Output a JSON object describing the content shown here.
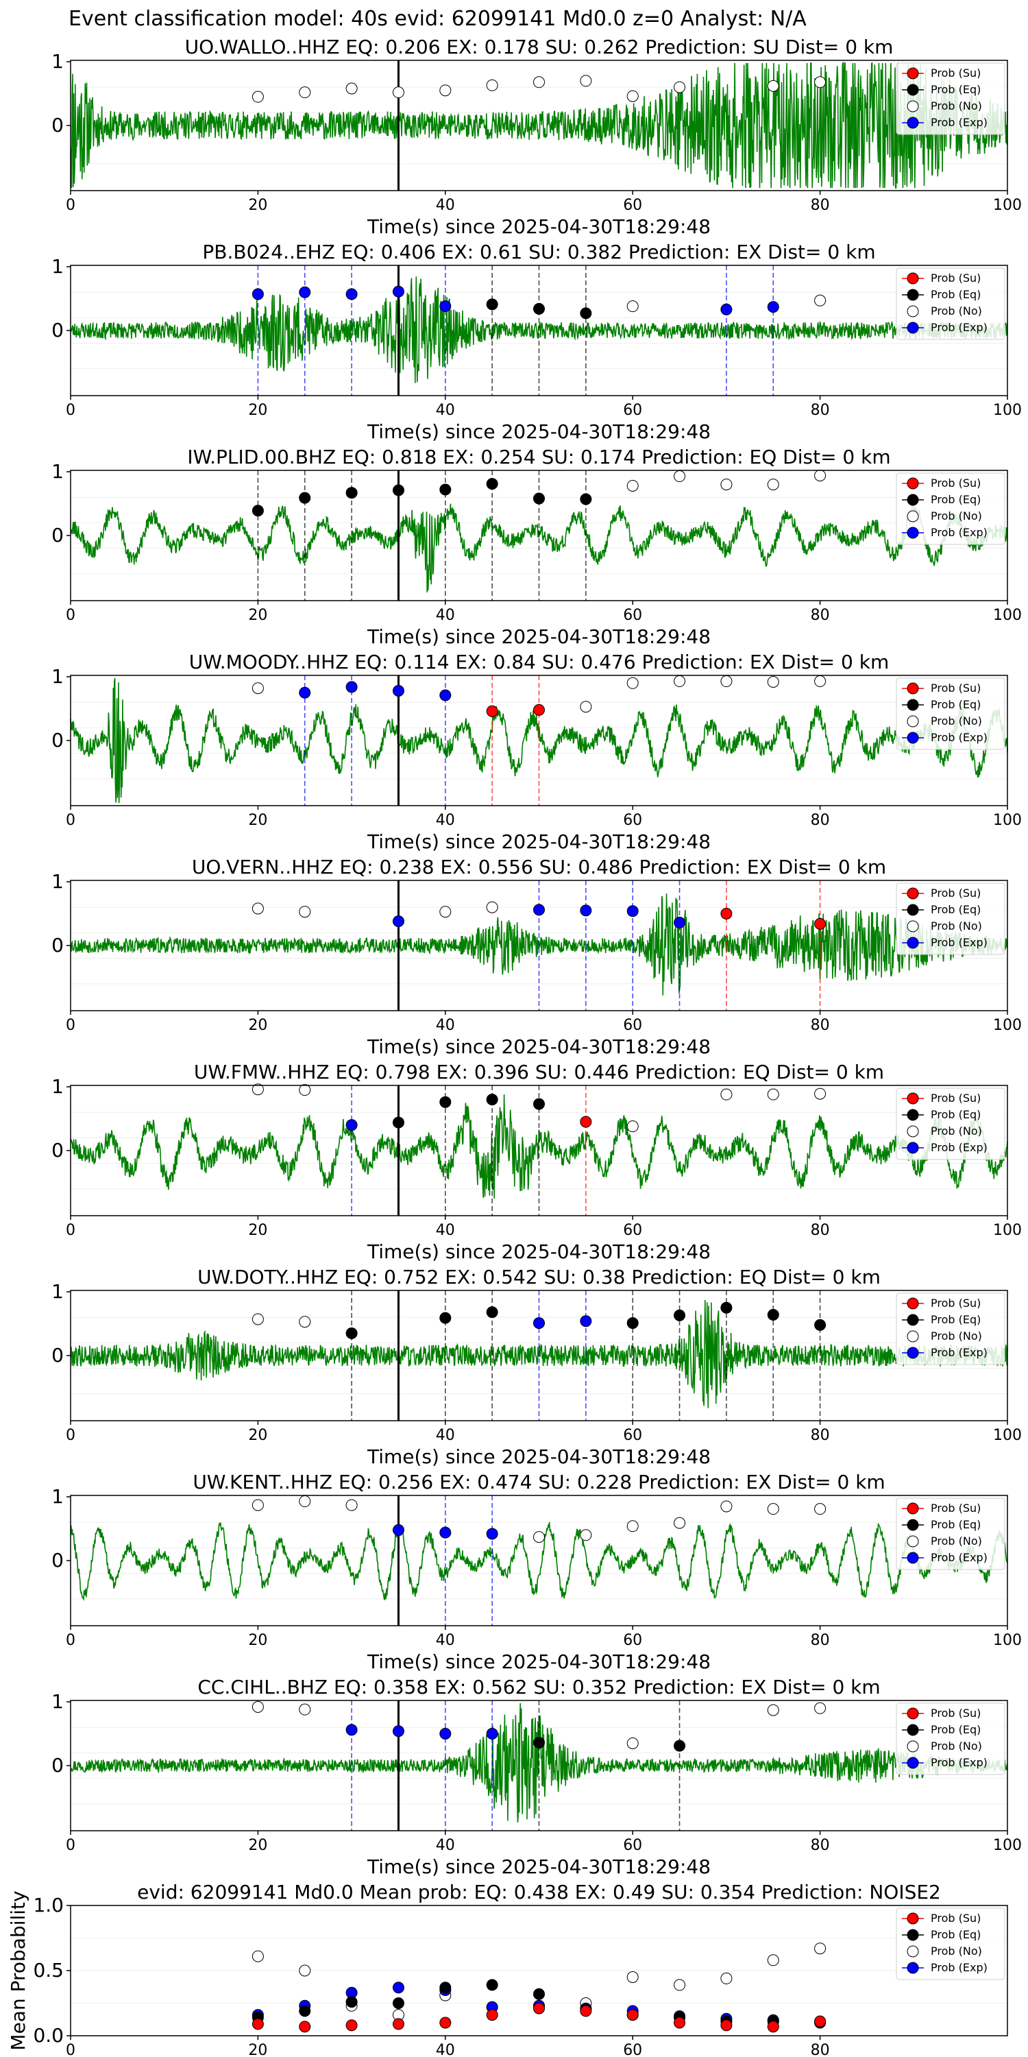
{
  "page": {
    "title": "Event classification model: 40s evid: 62099141 Md0.0 z=0 Analyst: N/A"
  },
  "legend_labels": [
    "Prob (Su)",
    "Prob (Eq)",
    "Prob (No)",
    "Prob (Exp)"
  ],
  "colors": {
    "waveform": "#008000",
    "su": "#ff0000",
    "eq": "#000000",
    "no": "#ffffff",
    "exp": "#0000ff",
    "origin_line": "#000000"
  },
  "chart_data": [
    {
      "type": "line",
      "title": "UO.WALLO..HHZ   EQ: 0.206  EX: 0.178  SU: 0.262   Prediction: SU    Dist= 0 km",
      "xlabel": "Time(s) since 2025-04-30T18:29:48",
      "xlim": [
        0,
        100
      ],
      "ylim": [
        -1,
        1
      ],
      "xticks": [
        0,
        20,
        40,
        60,
        80,
        100
      ],
      "yticks": [
        0,
        1
      ],
      "origin_time": 35,
      "waveform": {
        "seed": 11,
        "amp": 0.22,
        "style": "noise",
        "bursts": [
          [
            0,
            3,
            1.6
          ],
          [
            73,
            15,
            1.4
          ],
          [
            88,
            12,
            1.3
          ]
        ]
      },
      "points": [
        {
          "t": 20,
          "class": "no",
          "p": 0.45
        },
        {
          "t": 25,
          "class": "no",
          "p": 0.52
        },
        {
          "t": 30,
          "class": "no",
          "p": 0.58
        },
        {
          "t": 35,
          "class": "no",
          "p": 0.52
        },
        {
          "t": 40,
          "class": "no",
          "p": 0.55
        },
        {
          "t": 45,
          "class": "no",
          "p": 0.63
        },
        {
          "t": 50,
          "class": "no",
          "p": 0.68
        },
        {
          "t": 55,
          "class": "no",
          "p": 0.7
        },
        {
          "t": 60,
          "class": "no",
          "p": 0.46
        },
        {
          "t": 65,
          "class": "no",
          "p": 0.6
        },
        {
          "t": 75,
          "class": "no",
          "p": 0.62
        },
        {
          "t": 80,
          "class": "no",
          "p": 0.68
        }
      ]
    },
    {
      "type": "line",
      "title": "PB.B024..EHZ   EQ: 0.406  EX: 0.61  SU: 0.382   Prediction: EX    Dist= 0 km",
      "xlabel": "Time(s) since 2025-04-30T18:29:48",
      "xlim": [
        0,
        100
      ],
      "ylim": [
        -1,
        1
      ],
      "xticks": [
        0,
        20,
        40,
        60,
        80,
        100
      ],
      "yticks": [
        0,
        1
      ],
      "origin_time": 35,
      "waveform": {
        "seed": 23,
        "amp": 0.13,
        "style": "noise",
        "bursts": [
          [
            22,
            6,
            0.9
          ],
          [
            37,
            6,
            1.2
          ]
        ]
      },
      "points": [
        {
          "t": 20,
          "class": "exp",
          "p": 0.57
        },
        {
          "t": 25,
          "class": "exp",
          "p": 0.6
        },
        {
          "t": 30,
          "class": "exp",
          "p": 0.57
        },
        {
          "t": 35,
          "class": "exp",
          "p": 0.61
        },
        {
          "t": 40,
          "class": "exp",
          "p": 0.38
        },
        {
          "t": 45,
          "class": "eq",
          "p": 0.41
        },
        {
          "t": 50,
          "class": "eq",
          "p": 0.34
        },
        {
          "t": 55,
          "class": "eq",
          "p": 0.27
        },
        {
          "t": 60,
          "class": "no",
          "p": 0.38
        },
        {
          "t": 70,
          "class": "exp",
          "p": 0.33
        },
        {
          "t": 75,
          "class": "exp",
          "p": 0.37
        },
        {
          "t": 80,
          "class": "no",
          "p": 0.47
        }
      ]
    },
    {
      "type": "line",
      "title": "IW.PLID.00.BHZ   EQ: 0.818  EX: 0.254  SU: 0.174   Prediction: EQ    Dist= 0 km",
      "xlabel": "Time(s) since 2025-04-30T18:29:48",
      "xlim": [
        0,
        100
      ],
      "ylim": [
        -1,
        1
      ],
      "xticks": [
        0,
        20,
        40,
        60,
        80,
        100
      ],
      "yticks": [
        0,
        1
      ],
      "origin_time": 35,
      "waveform": {
        "seed": 37,
        "amp": 0.32,
        "style": "wave",
        "period": 4.5,
        "noise": 0.12,
        "bursts": [
          [
            38,
            2,
            0.8
          ]
        ]
      },
      "points": [
        {
          "t": 20,
          "class": "eq",
          "p": 0.39
        },
        {
          "t": 25,
          "class": "eq",
          "p": 0.59
        },
        {
          "t": 30,
          "class": "eq",
          "p": 0.67
        },
        {
          "t": 35,
          "class": "eq",
          "p": 0.71
        },
        {
          "t": 40,
          "class": "eq",
          "p": 0.72
        },
        {
          "t": 45,
          "class": "eq",
          "p": 0.81
        },
        {
          "t": 50,
          "class": "eq",
          "p": 0.58
        },
        {
          "t": 55,
          "class": "eq",
          "p": 0.57
        },
        {
          "t": 60,
          "class": "no",
          "p": 0.78
        },
        {
          "t": 65,
          "class": "no",
          "p": 0.93
        },
        {
          "t": 70,
          "class": "no",
          "p": 0.8
        },
        {
          "t": 75,
          "class": "no",
          "p": 0.8
        },
        {
          "t": 80,
          "class": "no",
          "p": 0.94
        }
      ]
    },
    {
      "type": "line",
      "title": "UW.MOODY..HHZ   EQ: 0.114  EX: 0.84  SU: 0.476   Prediction: EX    Dist= 0 km",
      "xlabel": "Time(s) since 2025-04-30T18:29:48",
      "xlim": [
        0,
        100
      ],
      "ylim": [
        -1,
        1
      ],
      "xticks": [
        0,
        20,
        40,
        60,
        80,
        100
      ],
      "yticks": [
        0,
        1
      ],
      "origin_time": 35,
      "waveform": {
        "seed": 41,
        "amp": 0.38,
        "style": "wave",
        "period": 3.8,
        "noise": 0.14,
        "bursts": [
          [
            5,
            1.2,
            1.2
          ]
        ]
      },
      "points": [
        {
          "t": 20,
          "class": "no",
          "p": 0.82
        },
        {
          "t": 25,
          "class": "exp",
          "p": 0.75
        },
        {
          "t": 30,
          "class": "exp",
          "p": 0.84
        },
        {
          "t": 35,
          "class": "exp",
          "p": 0.78
        },
        {
          "t": 40,
          "class": "exp",
          "p": 0.71
        },
        {
          "t": 45,
          "class": "su",
          "p": 0.46
        },
        {
          "t": 50,
          "class": "su",
          "p": 0.48
        },
        {
          "t": 55,
          "class": "no",
          "p": 0.53
        },
        {
          "t": 60,
          "class": "no",
          "p": 0.9
        },
        {
          "t": 65,
          "class": "no",
          "p": 0.93
        },
        {
          "t": 70,
          "class": "no",
          "p": 0.93
        },
        {
          "t": 75,
          "class": "no",
          "p": 0.92
        },
        {
          "t": 80,
          "class": "no",
          "p": 0.93
        }
      ]
    },
    {
      "type": "line",
      "title": "UO.VERN..HHZ   EQ: 0.238  EX: 0.556  SU: 0.486   Prediction: EX    Dist= 0 km",
      "xlabel": "Time(s) since 2025-04-30T18:29:48",
      "xlim": [
        0,
        100
      ],
      "ylim": [
        -1,
        1
      ],
      "xticks": [
        0,
        20,
        40,
        60,
        80,
        100
      ],
      "yticks": [
        0,
        1
      ],
      "origin_time": 35,
      "waveform": {
        "seed": 53,
        "amp": 0.12,
        "style": "noise",
        "bursts": [
          [
            46,
            4,
            0.6
          ],
          [
            64,
            3,
            1.3
          ],
          [
            83,
            13,
            0.8
          ]
        ]
      },
      "points": [
        {
          "t": 20,
          "class": "no",
          "p": 0.58
        },
        {
          "t": 25,
          "class": "no",
          "p": 0.53
        },
        {
          "t": 35,
          "class": "exp",
          "p": 0.38
        },
        {
          "t": 40,
          "class": "no",
          "p": 0.53
        },
        {
          "t": 45,
          "class": "no",
          "p": 0.6
        },
        {
          "t": 50,
          "class": "exp",
          "p": 0.56
        },
        {
          "t": 55,
          "class": "exp",
          "p": 0.55
        },
        {
          "t": 60,
          "class": "exp",
          "p": 0.54
        },
        {
          "t": 65,
          "class": "exp",
          "p": 0.36
        },
        {
          "t": 70,
          "class": "su",
          "p": 0.5
        },
        {
          "t": 80,
          "class": "su",
          "p": 0.34
        }
      ]
    },
    {
      "type": "line",
      "title": "UW.FMW..HHZ   EQ: 0.798  EX: 0.396  SU: 0.446   Prediction: EQ    Dist= 0 km",
      "xlabel": "Time(s) since 2025-04-30T18:29:48",
      "xlim": [
        0,
        100
      ],
      "ylim": [
        -1,
        1
      ],
      "xticks": [
        0,
        20,
        40,
        60,
        80,
        100
      ],
      "yticks": [
        0,
        1
      ],
      "origin_time": 35,
      "waveform": {
        "seed": 67,
        "amp": 0.4,
        "style": "wave",
        "period": 4.2,
        "noise": 0.15,
        "bursts": [
          [
            46,
            5,
            0.6
          ]
        ]
      },
      "points": [
        {
          "t": 20,
          "class": "no",
          "p": 0.96
        },
        {
          "t": 25,
          "class": "no",
          "p": 0.95
        },
        {
          "t": 30,
          "class": "exp",
          "p": 0.4
        },
        {
          "t": 35,
          "class": "eq",
          "p": 0.44
        },
        {
          "t": 40,
          "class": "eq",
          "p": 0.76
        },
        {
          "t": 45,
          "class": "eq",
          "p": 0.8
        },
        {
          "t": 50,
          "class": "eq",
          "p": 0.73
        },
        {
          "t": 55,
          "class": "su",
          "p": 0.45
        },
        {
          "t": 60,
          "class": "no",
          "p": 0.38
        },
        {
          "t": 70,
          "class": "no",
          "p": 0.88
        },
        {
          "t": 75,
          "class": "no",
          "p": 0.88
        },
        {
          "t": 80,
          "class": "no",
          "p": 0.89
        }
      ]
    },
    {
      "type": "line",
      "title": "UW.DOTY..HHZ   EQ: 0.752  EX: 0.542  SU: 0.38   Prediction: EQ    Dist= 0 km",
      "xlabel": "Time(s) since 2025-04-30T18:29:48",
      "xlim": [
        0,
        100
      ],
      "ylim": [
        -1,
        1
      ],
      "xticks": [
        0,
        20,
        40,
        60,
        80,
        100
      ],
      "yticks": [
        0,
        1
      ],
      "origin_time": 35,
      "waveform": {
        "seed": 79,
        "amp": 0.17,
        "style": "noise",
        "bursts": [
          [
            14,
            4,
            0.4
          ],
          [
            68,
            3,
            1.3
          ]
        ]
      },
      "points": [
        {
          "t": 20,
          "class": "no",
          "p": 0.57
        },
        {
          "t": 25,
          "class": "no",
          "p": 0.53
        },
        {
          "t": 30,
          "class": "eq",
          "p": 0.35
        },
        {
          "t": 40,
          "class": "eq",
          "p": 0.59
        },
        {
          "t": 45,
          "class": "eq",
          "p": 0.68
        },
        {
          "t": 50,
          "class": "exp",
          "p": 0.51
        },
        {
          "t": 55,
          "class": "exp",
          "p": 0.54
        },
        {
          "t": 60,
          "class": "eq",
          "p": 0.51
        },
        {
          "t": 65,
          "class": "eq",
          "p": 0.63
        },
        {
          "t": 70,
          "class": "eq",
          "p": 0.75
        },
        {
          "t": 75,
          "class": "eq",
          "p": 0.64
        },
        {
          "t": 80,
          "class": "eq",
          "p": 0.48
        }
      ]
    },
    {
      "type": "line",
      "title": "UW.KENT..HHZ   EQ: 0.256  EX: 0.474  SU: 0.228   Prediction: EX    Dist= 0 km",
      "xlabel": "Time(s) since 2025-04-30T18:29:48",
      "xlim": [
        0,
        100
      ],
      "ylim": [
        -1,
        1
      ],
      "xticks": [
        0,
        20,
        40,
        60,
        80,
        100
      ],
      "yticks": [
        0,
        1
      ],
      "origin_time": 35,
      "waveform": {
        "seed": 83,
        "amp": 0.45,
        "style": "wave",
        "period": 3.2,
        "noise": 0.1,
        "bursts": []
      },
      "points": [
        {
          "t": 20,
          "class": "no",
          "p": 0.87
        },
        {
          "t": 25,
          "class": "no",
          "p": 0.93
        },
        {
          "t": 30,
          "class": "no",
          "p": 0.87
        },
        {
          "t": 35,
          "class": "exp",
          "p": 0.48
        },
        {
          "t": 40,
          "class": "exp",
          "p": 0.44
        },
        {
          "t": 45,
          "class": "exp",
          "p": 0.42
        },
        {
          "t": 50,
          "class": "no",
          "p": 0.37
        },
        {
          "t": 55,
          "class": "no",
          "p": 0.4
        },
        {
          "t": 60,
          "class": "no",
          "p": 0.54
        },
        {
          "t": 65,
          "class": "no",
          "p": 0.59
        },
        {
          "t": 70,
          "class": "no",
          "p": 0.85
        },
        {
          "t": 75,
          "class": "no",
          "p": 0.81
        },
        {
          "t": 80,
          "class": "no",
          "p": 0.81
        }
      ]
    },
    {
      "type": "line",
      "title": "CC.CIHL..BHZ   EQ: 0.358  EX: 0.562  SU: 0.352   Prediction: EX    Dist= 0 km",
      "xlabel": "Time(s) since 2025-04-30T18:29:48",
      "xlim": [
        0,
        100
      ],
      "ylim": [
        -1,
        1
      ],
      "xticks": [
        0,
        20,
        40,
        60,
        80,
        100
      ],
      "yticks": [
        0,
        1
      ],
      "origin_time": 35,
      "waveform": {
        "seed": 97,
        "amp": 0.1,
        "style": "noise",
        "bursts": [
          [
            48,
            6,
            1.5
          ],
          [
            85,
            10,
            0.3
          ]
        ]
      },
      "points": [
        {
          "t": 20,
          "class": "no",
          "p": 0.92
        },
        {
          "t": 25,
          "class": "no",
          "p": 0.88
        },
        {
          "t": 30,
          "class": "exp",
          "p": 0.56
        },
        {
          "t": 35,
          "class": "exp",
          "p": 0.54
        },
        {
          "t": 40,
          "class": "exp",
          "p": 0.5
        },
        {
          "t": 45,
          "class": "exp",
          "p": 0.5
        },
        {
          "t": 50,
          "class": "eq",
          "p": 0.36
        },
        {
          "t": 60,
          "class": "no",
          "p": 0.35
        },
        {
          "t": 65,
          "class": "eq",
          "p": 0.31
        },
        {
          "t": 75,
          "class": "no",
          "p": 0.87
        },
        {
          "t": 80,
          "class": "no",
          "p": 0.9
        }
      ]
    },
    {
      "type": "scatter",
      "title": "evid: 62099141  Md0.0   Mean prob:   EQ: 0.438  EX: 0.49  SU: 0.354   Prediction: NOISE2",
      "xlabel": "",
      "ylabel": "Mean Probability",
      "xlim": [
        0,
        100
      ],
      "ylim": [
        0,
        1
      ],
      "xticks": [
        0,
        20,
        40,
        60,
        80
      ],
      "yticks": [
        0,
        0.5,
        1
      ],
      "ytick_labels": [
        "0.0",
        "0.5",
        "1.0"
      ],
      "x": [
        20,
        25,
        30,
        35,
        40,
        45,
        50,
        55,
        60,
        65,
        70,
        75,
        80
      ],
      "series": [
        {
          "class": "no",
          "values": [
            0.61,
            0.5,
            0.23,
            0.16,
            0.31,
            0.22,
            0.23,
            0.25,
            0.45,
            0.39,
            0.44,
            0.58,
            0.67
          ]
        },
        {
          "class": "exp",
          "values": [
            0.16,
            0.23,
            0.33,
            0.37,
            0.35,
            0.22,
            0.23,
            0.21,
            0.19,
            0.15,
            0.13,
            0.12,
            0.11
          ]
        },
        {
          "class": "eq",
          "values": [
            0.14,
            0.19,
            0.26,
            0.25,
            0.37,
            0.39,
            0.32,
            0.2,
            0.16,
            0.14,
            0.11,
            0.11,
            0.1
          ]
        },
        {
          "class": "su",
          "values": [
            0.09,
            0.07,
            0.08,
            0.09,
            0.1,
            0.16,
            0.21,
            0.19,
            0.16,
            0.1,
            0.08,
            0.07,
            0.11
          ]
        }
      ]
    }
  ]
}
